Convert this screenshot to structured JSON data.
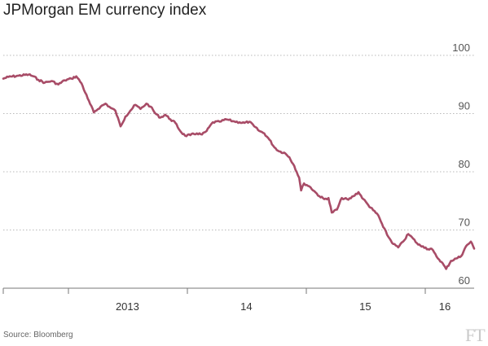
{
  "title": "JPMorgan EM currency index",
  "source": "Source: Bloomberg",
  "logo": "FT",
  "colors": {
    "series": "#a84c67",
    "grid": "#b9b9b9",
    "axis": "#777777"
  },
  "chart_data": {
    "type": "line",
    "title": "JPMorgan EM currency index",
    "xlabel": "",
    "ylabel": "",
    "ylim": [
      60,
      100
    ],
    "yticks": [
      60,
      70,
      80,
      90,
      100
    ],
    "xlim": [
      "2012-06-15",
      "2016-05-30"
    ],
    "xtick_boundaries": [
      "2012-06-15",
      "2013-01-01",
      "2014-01-01",
      "2015-01-01",
      "2016-01-01"
    ],
    "xtick_labels": [
      {
        "label": "2013",
        "date": "2013-07-01"
      },
      {
        "label": "14",
        "date": "2014-07-01"
      },
      {
        "label": "15",
        "date": "2015-07-01"
      },
      {
        "label": "16",
        "date": "2016-03-01"
      }
    ],
    "grid": true,
    "legend": "none",
    "series": [
      {
        "x": [
          "2012-06-15",
          "2012-07-01",
          "2012-08-01",
          "2012-09-01",
          "2012-09-15",
          "2012-10-01",
          "2012-10-20",
          "2012-11-10",
          "2012-12-01",
          "2012-12-20",
          "2013-01-10",
          "2013-01-25",
          "2013-02-10",
          "2013-03-01",
          "2013-03-20",
          "2013-04-10",
          "2013-04-25",
          "2013-05-10",
          "2013-05-25",
          "2013-06-10",
          "2013-06-25",
          "2013-07-10",
          "2013-07-25",
          "2013-08-10",
          "2013-08-28",
          "2013-09-10",
          "2013-09-25",
          "2013-10-10",
          "2013-10-25",
          "2013-11-10",
          "2013-11-25",
          "2013-12-10",
          "2013-12-25",
          "2014-01-10",
          "2014-01-30",
          "2014-02-15",
          "2014-03-01",
          "2014-03-20",
          "2014-04-10",
          "2014-05-01",
          "2014-05-20",
          "2014-06-10",
          "2014-06-25",
          "2014-07-10",
          "2014-07-25",
          "2014-08-10",
          "2014-08-25",
          "2014-09-10",
          "2014-09-25",
          "2014-10-10",
          "2014-10-25",
          "2014-11-10",
          "2014-11-25",
          "2014-12-10",
          "2014-12-16",
          "2014-12-25",
          "2015-01-10",
          "2015-01-25",
          "2015-02-10",
          "2015-02-25",
          "2015-03-10",
          "2015-03-20",
          "2015-04-05",
          "2015-04-20",
          "2015-05-10",
          "2015-05-25",
          "2015-06-10",
          "2015-06-25",
          "2015-07-10",
          "2015-07-25",
          "2015-08-10",
          "2015-08-25",
          "2015-09-10",
          "2015-09-25",
          "2015-10-10",
          "2015-10-25",
          "2015-11-10",
          "2015-11-25",
          "2015-12-10",
          "2015-12-25",
          "2016-01-10",
          "2016-01-20",
          "2016-02-05",
          "2016-02-20",
          "2016-03-05",
          "2016-03-20",
          "2016-04-05",
          "2016-04-20",
          "2016-05-05",
          "2016-05-20",
          "2016-05-30"
        ],
        "values": [
          96.0,
          96.3,
          96.5,
          96.7,
          96.4,
          95.8,
          95.3,
          95.6,
          95.0,
          95.7,
          96.0,
          96.4,
          95.2,
          92.6,
          90.2,
          91.2,
          91.7,
          91.0,
          90.5,
          87.8,
          89.5,
          90.5,
          91.5,
          90.8,
          91.7,
          91.2,
          90.0,
          89.3,
          89.8,
          89.0,
          88.4,
          87.0,
          86.2,
          86.3,
          86.6,
          86.4,
          87.0,
          88.5,
          88.6,
          89.0,
          88.7,
          88.5,
          88.4,
          88.6,
          87.8,
          87.0,
          86.6,
          85.5,
          84.2,
          83.5,
          83.3,
          82.5,
          81.0,
          79.0,
          76.8,
          78.0,
          77.5,
          76.7,
          75.8,
          75.3,
          75.5,
          73.0,
          73.5,
          75.5,
          75.2,
          75.8,
          76.5,
          75.3,
          74.3,
          73.4,
          72.5,
          70.5,
          68.8,
          67.6,
          67.0,
          68.0,
          69.3,
          68.5,
          67.5,
          67.2,
          66.7,
          66.8,
          65.4,
          64.5,
          63.3,
          64.7,
          65.1,
          65.5,
          67.2,
          68.0,
          66.8
        ]
      }
    ]
  }
}
